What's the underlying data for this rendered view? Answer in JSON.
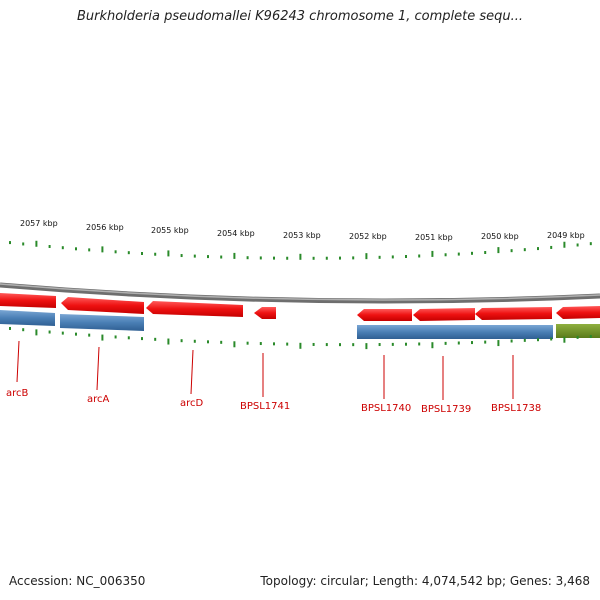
{
  "title": "Burkholderia pseudomallei K96243 chromosome 1, complete sequ...",
  "colors": {
    "forward_gene": "#ee1111",
    "cds_track": "#4a7fb5",
    "other_feature": "#6b8e23",
    "tick": "#2a8a2a",
    "backbone": "#888888",
    "label": "#cc0000"
  },
  "scale_labels": [
    "2057 kbp",
    "2056 kbp",
    "2055 kbp",
    "2054 kbp",
    "2053 kbp",
    "2052 kbp",
    "2051 kbp",
    "2050 kbp",
    "2049 kbp"
  ],
  "gene_labels": [
    "arcB",
    "arcA",
    "arcD",
    "BPSL1741",
    "BPSL1740",
    "BPSL1739",
    "BPSL1738"
  ],
  "footer": {
    "accession": "Accession: NC_006350",
    "summary": "Topology: circular; Length: 4,074,542 bp; Genes: 3,468"
  }
}
